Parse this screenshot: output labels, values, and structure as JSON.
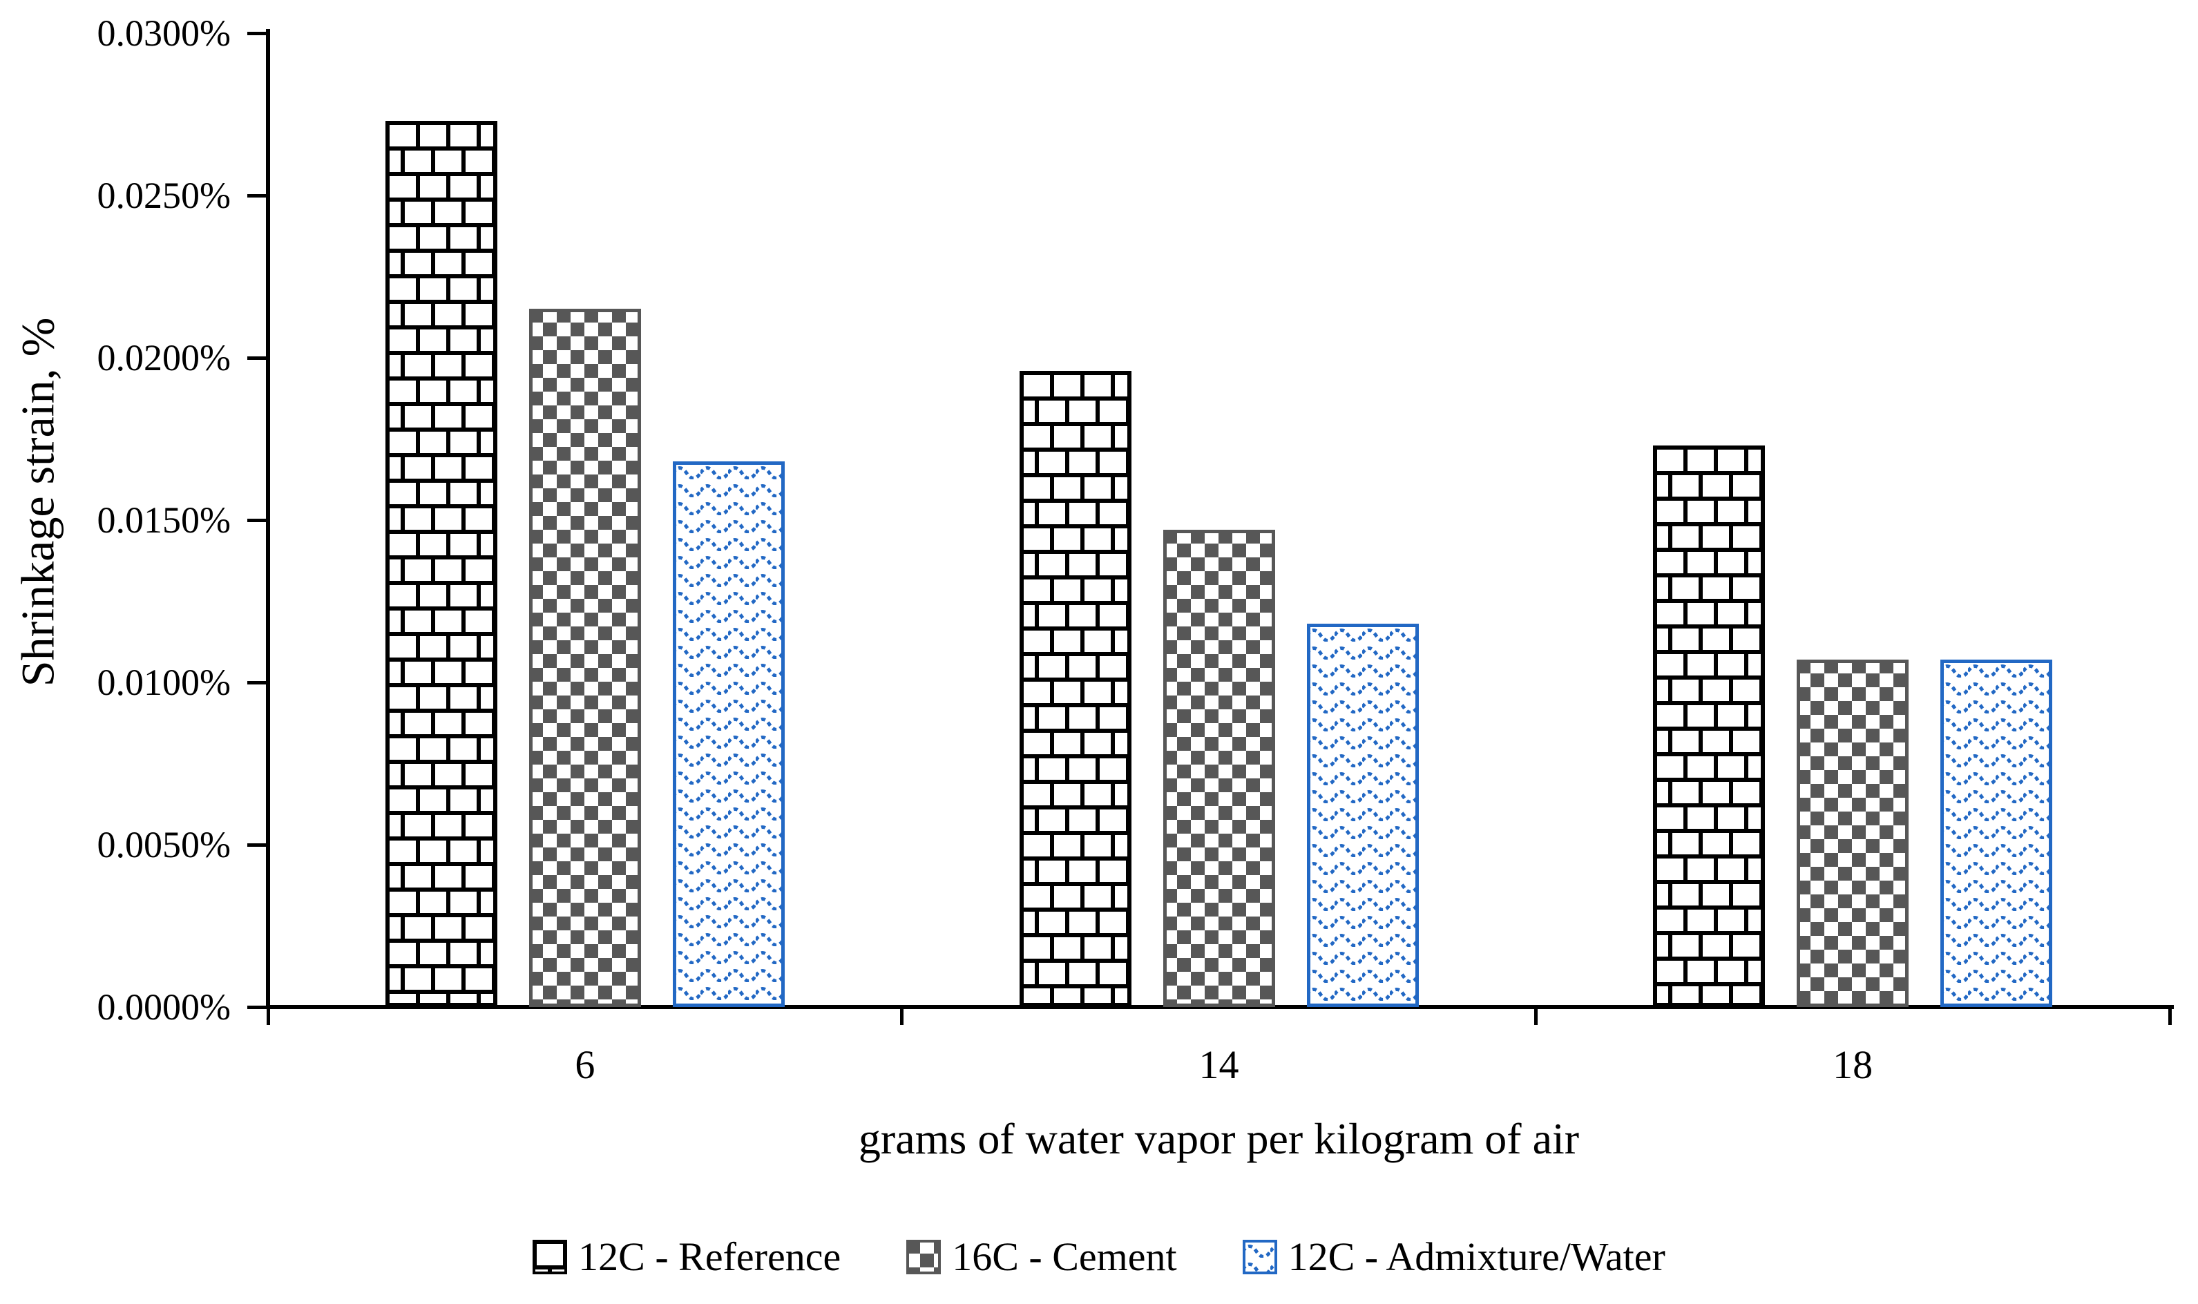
{
  "figure": {
    "background": "#ffffff"
  },
  "chart_data": {
    "type": "bar",
    "title": "",
    "categories": [
      "6",
      "14",
      "18"
    ],
    "series": [
      {
        "name": "12C - Reference",
        "pattern": "brick",
        "color": "#000000",
        "values_pct": [
          0.0273,
          0.0196,
          0.0173
        ]
      },
      {
        "name": "16C - Cement",
        "pattern": "checker",
        "color": "#575757",
        "values_pct": [
          0.0215,
          0.0147,
          0.0107
        ]
      },
      {
        "name": "12C - Admixture/Water",
        "pattern": "waves",
        "color": "#2268C4",
        "values_pct": [
          0.0168,
          0.0118,
          0.0107
        ]
      }
    ],
    "xlabel": "grams of water vapor per kilogram of air",
    "ylabel": "Shrinkage strain, %",
    "ylim_pct": [
      0,
      0.03
    ],
    "ytick_step_pct": 0.005,
    "ytick_labels": [
      "0.0300%",
      "0.0250%",
      "0.0200%",
      "0.0150%",
      "0.0100%",
      "0.0050%",
      "0.0000%"
    ],
    "gridlines": false,
    "legend_position": "bottom"
  }
}
